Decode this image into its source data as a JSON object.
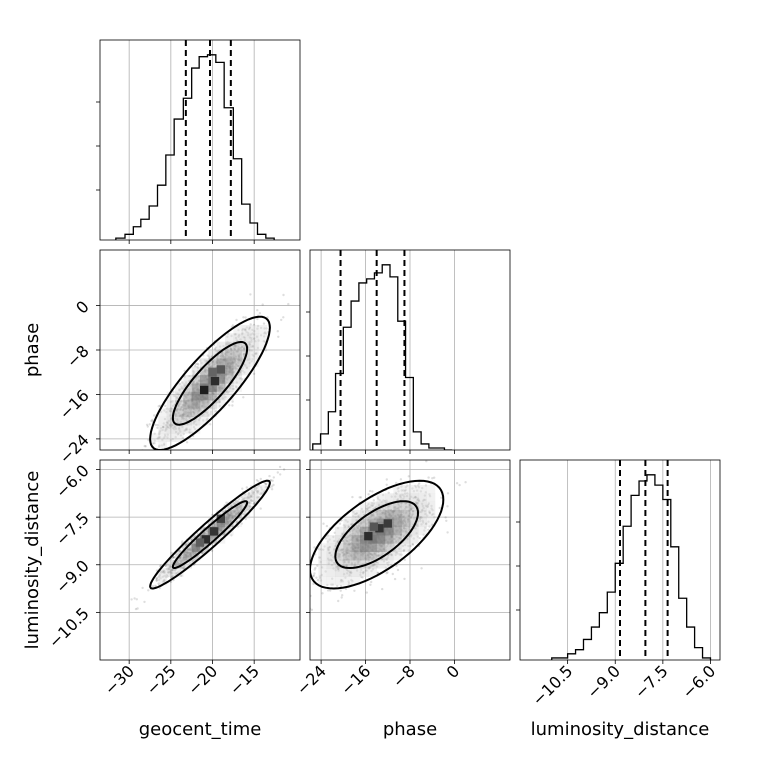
{
  "chart_data": {
    "type": "corner",
    "parameters": [
      "geocent_time",
      "phase",
      "luminosity_distance"
    ],
    "axis_labels": {
      "geocent_time": "geocent_time",
      "phase": "phase",
      "luminosity_distance": "luminosity_distance"
    },
    "ranges": {
      "geocent_time": [
        -33.5,
        -9.5
      ],
      "phase": [
        -26,
        10
      ],
      "luminosity_distance": [
        -12.0,
        -5.7
      ]
    },
    "ticks": {
      "geocent_time": [
        -30,
        -25,
        -20,
        -15
      ],
      "phase": [
        -24,
        -16,
        -8,
        0
      ],
      "luminosity_distance": [
        -10.5,
        -9.0,
        -7.5,
        -6.0
      ]
    },
    "tick_labels": {
      "geocent_time": [
        "−30",
        "−25",
        "−20",
        "−15"
      ],
      "phase": [
        "−24",
        "−16",
        "−8",
        "0"
      ],
      "luminosity_distance": [
        "−10.5",
        "−9.0",
        "−7.5",
        "−6.0"
      ]
    },
    "quantiles": {
      "geocent_time": [
        -23.2,
        -20.3,
        -17.8
      ],
      "phase": [
        -20.5,
        -14.0,
        -9.0
      ],
      "luminosity_distance": [
        -8.85,
        -8.05,
        -7.35
      ]
    },
    "histograms": {
      "geocent_time": {
        "edges": [
          -31.6,
          -30.5,
          -29.5,
          -28.6,
          -27.6,
          -26.6,
          -25.6,
          -24.6,
          -23.5,
          -22.5,
          -21.6,
          -20.6,
          -19.6,
          -18.6,
          -17.5,
          -16.5,
          -15.5,
          -14.6,
          -13.6,
          -12.6
        ],
        "counts": [
          1,
          3,
          7,
          11,
          18,
          29,
          45,
          64,
          75,
          91,
          97,
          98,
          94,
          70,
          43,
          19,
          9,
          3,
          1
        ]
      },
      "phase": {
        "edges": [
          -25.5,
          -24.1,
          -22.7,
          -21.4,
          -20.0,
          -18.6,
          -17.2,
          -15.8,
          -14.4,
          -13.0,
          -11.6,
          -10.2,
          -8.8,
          -7.4,
          -6.0,
          -4.6,
          -3.2,
          -1.8,
          -0.4
        ],
        "counts": [
          3,
          8,
          19,
          38,
          61,
          74,
          83,
          85,
          88,
          92,
          86,
          64,
          36,
          9,
          3,
          1,
          1,
          0
        ]
      },
      "luminosity_distance": {
        "edges": [
          -11.0,
          -10.75,
          -10.5,
          -10.25,
          -10.0,
          -9.75,
          -9.5,
          -9.25,
          -9.0,
          -8.75,
          -8.5,
          -8.25,
          -8.0,
          -7.75,
          -7.5,
          -7.25,
          -7.0,
          -6.75,
          -6.5,
          -6.25,
          -6.0
        ],
        "counts": [
          1,
          1,
          3,
          5,
          10,
          16,
          23,
          33,
          47,
          65,
          80,
          87,
          90,
          85,
          78,
          55,
          30,
          16,
          6,
          1
        ]
      }
    },
    "joint": [
      {
        "x": "geocent_time",
        "y": "phase",
        "mean": [
          -20.3,
          -14.0
        ],
        "cov": [
          [
            8.6,
            12.0
          ],
          [
            12.0,
            24.0
          ]
        ],
        "contour_sigma": [
          1,
          2
        ],
        "hot_cells": [
          [
            -21.0,
            -15.2,
            1.0
          ],
          [
            -19.7,
            -13.6,
            0.9
          ],
          [
            -19.0,
            -11.5,
            0.6
          ],
          [
            -20.0,
            -12.0,
            0.5
          ]
        ]
      },
      {
        "x": "geocent_time",
        "y": "luminosity_distance",
        "mean": [
          -20.3,
          -8.05
        ],
        "cov": [
          [
            8.6,
            1.95
          ],
          [
            1.95,
            0.48
          ]
        ],
        "contour_sigma": [
          1,
          2
        ],
        "hot_cells": [
          [
            -20.8,
            -8.2,
            0.9
          ],
          [
            -19.8,
            -7.95,
            0.85
          ],
          [
            -19.0,
            -7.55,
            0.75
          ],
          [
            -21.5,
            -8.3,
            0.55
          ]
        ]
      },
      {
        "x": "phase",
        "y": "luminosity_distance",
        "mean": [
          -14.0,
          -8.05
        ],
        "cov": [
          [
            24.0,
            2.2
          ],
          [
            2.2,
            0.48
          ]
        ],
        "contour_sigma": [
          1,
          2
        ],
        "hot_cells": [
          [
            -15.5,
            -8.1,
            0.9
          ],
          [
            -13.5,
            -7.85,
            0.85
          ],
          [
            -12.0,
            -7.7,
            0.8
          ],
          [
            -14.5,
            -7.8,
            0.6
          ]
        ]
      }
    ]
  }
}
